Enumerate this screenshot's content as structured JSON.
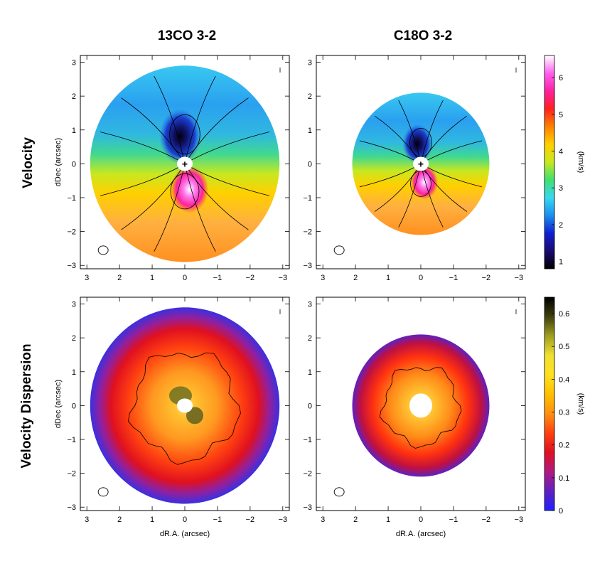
{
  "column_titles": [
    "13CO 3-2",
    "C18O 3-2"
  ],
  "row_titles": [
    "Velocity",
    "Velocity Dispersion"
  ],
  "colors": {
    "velocity_scale": [
      "#000000",
      "#1a0a70",
      "#1020d0",
      "#1a8ff0",
      "#38d8f0",
      "#40e070",
      "#c8e820",
      "#ffd000",
      "#ff8000",
      "#ff2020",
      "#ff20a0",
      "#ff60f0",
      "#ffffff"
    ],
    "dispersion_scale": [
      "#2020ff",
      "#6020c0",
      "#b01a80",
      "#e01020",
      "#ff4010",
      "#ff9010",
      "#ffc000",
      "#ffe020",
      "#f0e030",
      "#a0a020",
      "#404010",
      "#000000"
    ]
  },
  "chart_data": [
    {
      "type": "heatmap",
      "panel": "velocity-13co",
      "title": "13CO 3-2",
      "quantity": "Velocity",
      "xlabel": "",
      "ylabel": "dDec (arcsec)",
      "xlim": [
        3.2,
        -3.2
      ],
      "ylim": [
        -3.1,
        3.2
      ],
      "x_ticks": [
        "3",
        "2",
        "1",
        "0",
        "−1",
        "−2",
        "−3"
      ],
      "y_ticks": [
        "3",
        "2",
        "1",
        "0",
        "−1",
        "−2",
        "−3"
      ],
      "disk_radius_arcsec": 2.9,
      "center_marker": "+",
      "beam_marker": "ellipse"
    },
    {
      "type": "heatmap",
      "panel": "velocity-c18o",
      "title": "C18O 3-2",
      "quantity": "Velocity",
      "xlabel": "",
      "ylabel": "",
      "xlim": [
        3.2,
        -3.2
      ],
      "ylim": [
        -3.1,
        3.2
      ],
      "x_ticks": [
        "3",
        "2",
        "1",
        "0",
        "−1",
        "−2",
        "−3"
      ],
      "y_ticks": [
        "3",
        "2",
        "1",
        "0",
        "−1",
        "−2",
        "−3"
      ],
      "disk_radius_arcsec": 2.1,
      "center_marker": "+",
      "beam_marker": "ellipse"
    },
    {
      "type": "heatmap",
      "panel": "dispersion-13co",
      "title": "13CO 3-2",
      "quantity": "Velocity Dispersion",
      "xlabel": "dR.A. (arcsec)",
      "ylabel": "dDec (arcsec)",
      "xlim": [
        3.2,
        -3.2
      ],
      "ylim": [
        -3.1,
        3.2
      ],
      "x_ticks": [
        "3",
        "2",
        "1",
        "0",
        "−1",
        "−2",
        "−3"
      ],
      "y_ticks": [
        "3",
        "2",
        "1",
        "0",
        "−1",
        "−2",
        "−3"
      ],
      "disk_radius_arcsec": 2.9,
      "beam_marker": "ellipse"
    },
    {
      "type": "heatmap",
      "panel": "dispersion-c18o",
      "title": "C18O 3-2",
      "quantity": "Velocity Dispersion",
      "xlabel": "dR.A. (arcsec)",
      "ylabel": "",
      "xlim": [
        3.2,
        -3.2
      ],
      "ylim": [
        -3.1,
        3.2
      ],
      "x_ticks": [
        "3",
        "2",
        "1",
        "0",
        "−1",
        "−2",
        "−3"
      ],
      "y_ticks": [
        "3",
        "2",
        "1",
        "0",
        "−1",
        "−2",
        "−3"
      ],
      "disk_radius_arcsec": 2.1,
      "beam_marker": "ellipse"
    }
  ],
  "colorbars": [
    {
      "label": "(km/s)",
      "ticks": [
        "1",
        "2",
        "3",
        "4",
        "5",
        "6"
      ],
      "tick_values": [
        1,
        2,
        3,
        4,
        5,
        6
      ],
      "range": [
        0.8,
        6.6
      ]
    },
    {
      "label": "(km/s)",
      "ticks": [
        "0",
        "0.1",
        "0.2",
        "0.3",
        "0.4",
        "0.5",
        "0.6"
      ],
      "tick_values": [
        0,
        0.1,
        0.2,
        0.3,
        0.4,
        0.5,
        0.6
      ],
      "range": [
        0,
        0.65
      ]
    }
  ]
}
